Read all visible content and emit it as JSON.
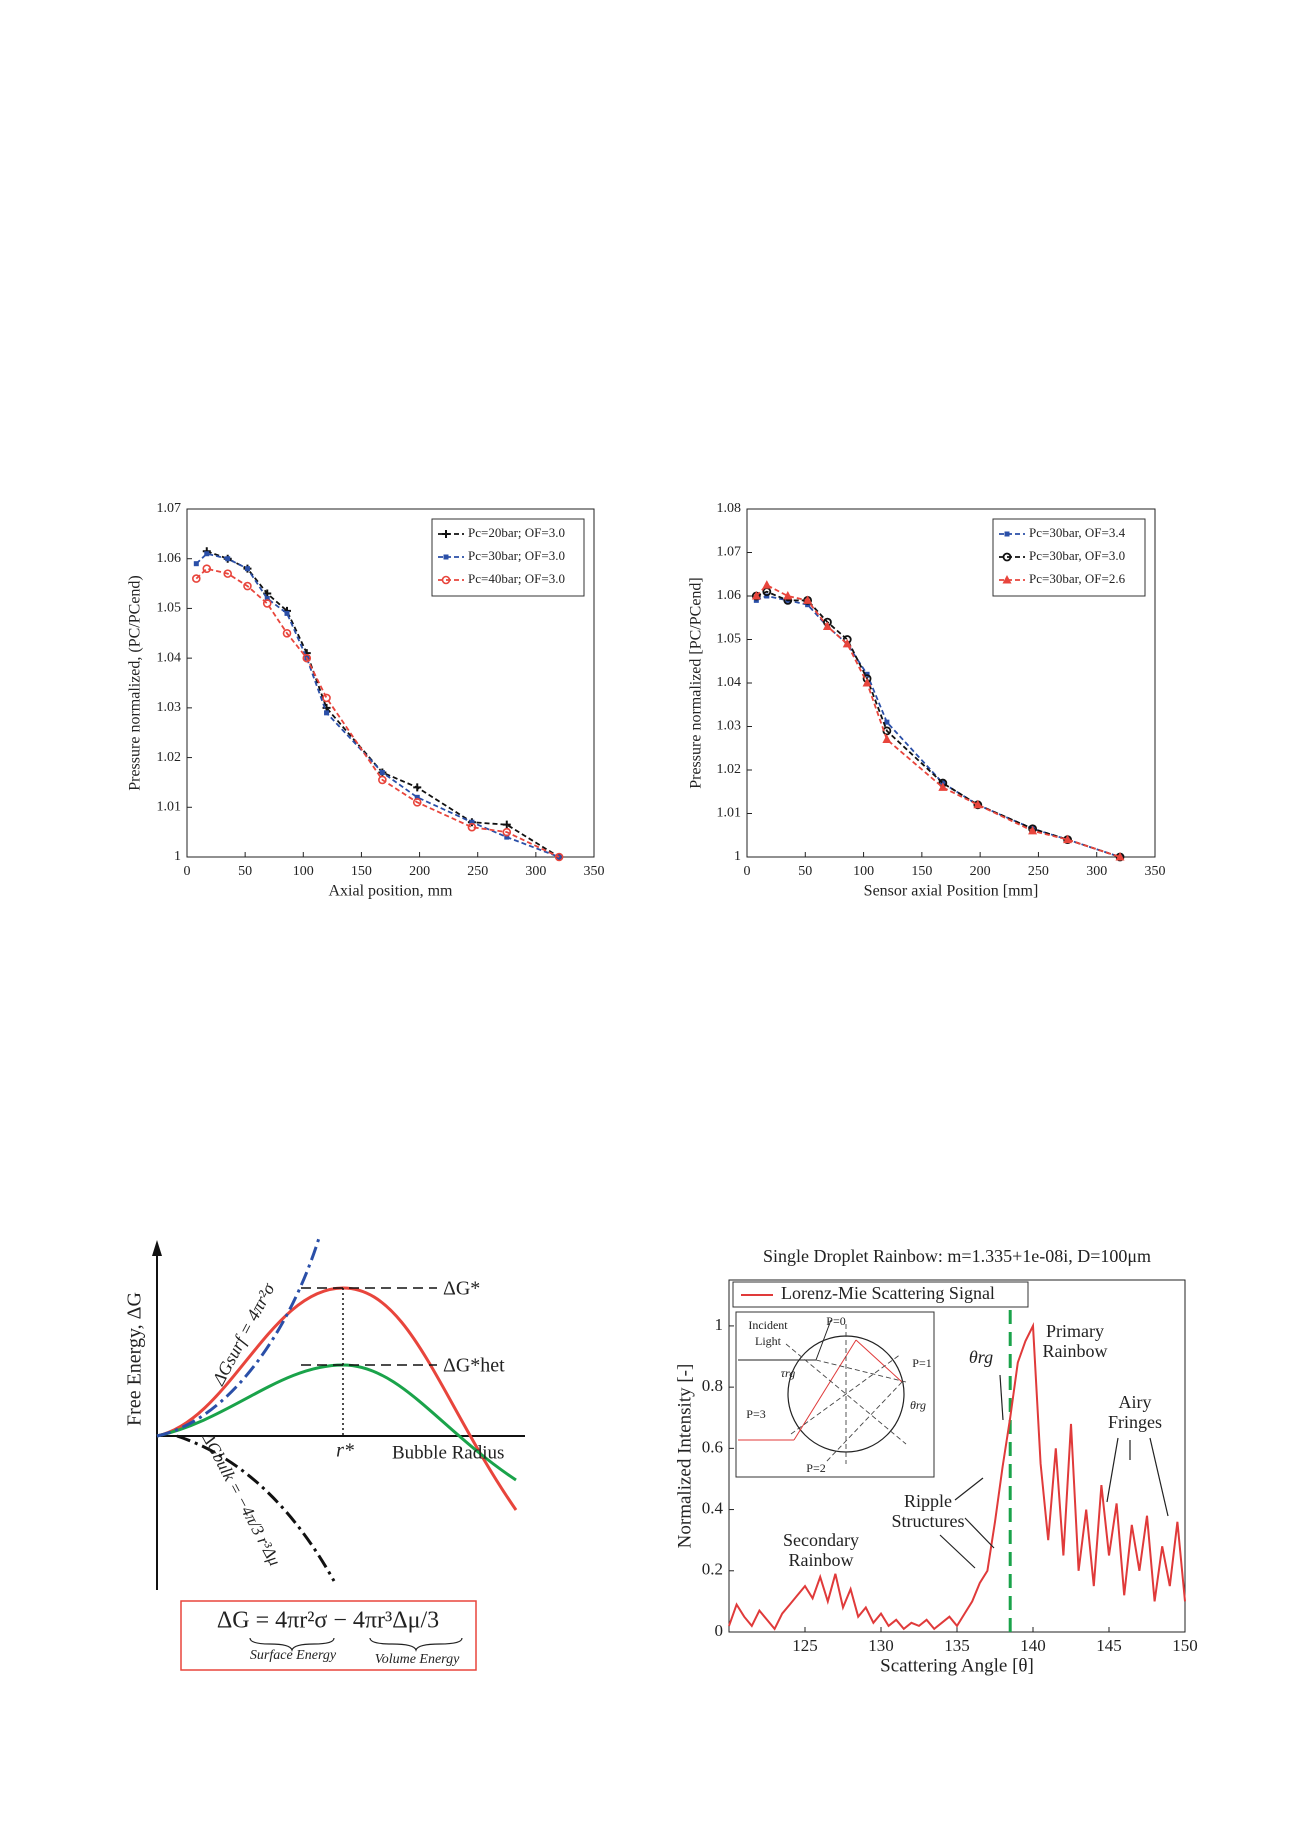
{
  "chart_data": [
    {
      "type": "line",
      "xlabel": "Axial position, mm",
      "ylabel": "Pressure normalized, (PC/PCend)",
      "x": [
        8,
        17,
        35,
        52,
        69,
        86,
        103,
        120,
        168,
        198,
        245,
        275,
        320
      ],
      "xlim": [
        0,
        350
      ],
      "xticks": [
        0,
        50,
        100,
        150,
        200,
        250,
        300,
        350
      ],
      "ylim": [
        1,
        1.07
      ],
      "yticks": [
        1,
        1.01,
        1.02,
        1.03,
        1.04,
        1.05,
        1.06,
        1.07
      ],
      "legend": "upper right",
      "dashed": true,
      "series": [
        {
          "name": "Pc=20bar; OF=3.0",
          "color": "#111111",
          "marker": "plus",
          "values": [
            null,
            1.0615,
            1.06,
            1.058,
            1.053,
            1.0495,
            1.041,
            1.03,
            1.017,
            1.014,
            1.007,
            1.0065,
            1.0
          ]
        },
        {
          "name": "Pc=30bar; OF=3.0",
          "color": "#2a4fa8",
          "marker": "square",
          "values": [
            1.059,
            1.061,
            1.06,
            1.058,
            1.052,
            1.049,
            1.04,
            1.029,
            1.017,
            1.012,
            1.007,
            1.004,
            1.0
          ]
        },
        {
          "name": "Pc=40bar; OF=3.0",
          "color": "#e8453c",
          "marker": "circle",
          "values": [
            1.056,
            1.058,
            1.057,
            1.0545,
            1.051,
            1.045,
            1.04,
            1.032,
            1.0155,
            1.011,
            1.006,
            1.005,
            1.0
          ]
        }
      ]
    },
    {
      "type": "line",
      "xlabel": "Sensor axial Position [mm]",
      "ylabel": "Pressure normalized [PC/PCend]",
      "x": [
        8,
        17,
        35,
        52,
        69,
        86,
        103,
        120,
        168,
        198,
        245,
        275,
        320
      ],
      "xlim": [
        0,
        350
      ],
      "xticks": [
        0,
        50,
        100,
        150,
        200,
        250,
        300,
        350
      ],
      "ylim": [
        1,
        1.08
      ],
      "yticks": [
        1,
        1.01,
        1.02,
        1.03,
        1.04,
        1.05,
        1.06,
        1.07,
        1.08
      ],
      "legend": "upper right",
      "dashed": true,
      "series": [
        {
          "name": "Pc=30bar, OF=3.4",
          "color": "#2a4fa8",
          "marker": "square",
          "values": [
            1.059,
            1.06,
            1.059,
            1.058,
            1.053,
            1.049,
            1.042,
            1.031,
            1.017,
            1.012,
            1.0065,
            1.004,
            1.0
          ]
        },
        {
          "name": "Pc=30bar, OF=3.0",
          "color": "#111111",
          "marker": "circle-open",
          "values": [
            1.06,
            1.061,
            1.059,
            1.059,
            1.054,
            1.05,
            1.041,
            1.029,
            1.017,
            1.012,
            1.0065,
            1.004,
            1.0
          ]
        },
        {
          "name": "Pc=30bar, OF=2.6",
          "color": "#e8453c",
          "marker": "triangle",
          "values": [
            1.06,
            1.0625,
            1.06,
            1.059,
            1.053,
            1.049,
            1.04,
            1.027,
            1.016,
            1.012,
            1.006,
            1.004,
            1.0
          ]
        }
      ]
    },
    {
      "type": "line",
      "title": "Single Droplet Rainbow: m=1.335+1e-08i, D=100μm",
      "xlabel": "Scattering Angle [θ]",
      "ylabel": "Normalized Intensity [-]",
      "x": [
        120,
        120.5,
        121,
        121.5,
        122,
        122.5,
        123,
        123.5,
        124,
        124.5,
        125,
        125.5,
        126,
        126.5,
        127,
        127.5,
        128,
        128.5,
        129,
        129.5,
        130,
        130.5,
        131,
        131.5,
        132,
        132.5,
        133,
        133.5,
        134,
        134.5,
        135,
        135.5,
        136,
        136.5,
        137,
        137.5,
        138,
        138.5,
        139,
        139.5,
        140,
        140.5,
        141,
        141.5,
        142,
        142.5,
        143,
        143.5,
        144,
        144.5,
        145,
        145.5,
        146,
        146.5,
        147,
        147.5,
        148,
        148.5,
        149,
        149.5,
        150
      ],
      "xlim": [
        120,
        150
      ],
      "xticks": [
        125,
        130,
        135,
        140,
        145,
        150
      ],
      "ylim": [
        0,
        1.15
      ],
      "yticks": [
        0,
        0.2,
        0.4,
        0.6,
        0.8,
        1
      ],
      "legend": "upper left",
      "dashed": false,
      "series": [
        {
          "name": "Lorenz-Mie Scattering Signal",
          "color": "#e03a3a",
          "marker": "none",
          "values": [
            0.02,
            0.09,
            0.05,
            0.02,
            0.07,
            0.04,
            0.01,
            0.06,
            0.09,
            0.12,
            0.15,
            0.11,
            0.18,
            0.1,
            0.19,
            0.08,
            0.14,
            0.05,
            0.08,
            0.03,
            0.06,
            0.02,
            0.04,
            0.01,
            0.03,
            0.02,
            0.04,
            0.01,
            0.03,
            0.05,
            0.02,
            0.06,
            0.1,
            0.16,
            0.2,
            0.36,
            0.54,
            0.7,
            0.88,
            0.95,
            1.0,
            0.55,
            0.3,
            0.6,
            0.25,
            0.68,
            0.2,
            0.4,
            0.15,
            0.48,
            0.25,
            0.42,
            0.12,
            0.35,
            0.2,
            0.38,
            0.1,
            0.28,
            0.15,
            0.36,
            0.1
          ]
        }
      ],
      "vline": {
        "value": 138.5,
        "color": "#1aa34a"
      },
      "annotations": [
        [
          "θrg"
        ],
        [
          "Primary",
          "Rainbow"
        ],
        [
          "Airy",
          "Fringes"
        ],
        [
          "Ripple",
          "Structures"
        ],
        [
          "Secondary",
          "Rainbow"
        ]
      ],
      "inset": [
        "Incident",
        "Light",
        "P=0",
        "P=1",
        "P=2",
        "P=3",
        "τrg",
        "θrg"
      ]
    }
  ],
  "diagram": {
    "ylabel": "Free Energy, ΔG",
    "xlabel": "Bubble Radius",
    "r_star": "r*",
    "dg_star": "ΔG*",
    "dg_het": "ΔG*het",
    "dg_surf": "ΔGsurf = 4πr²σ",
    "dg_bulk": "ΔGbulk = −4π/3 r³Δμ",
    "formula": "ΔG =  4πr²σ  − 4πr³Δμ/3",
    "surface": "Surface Energy",
    "volume": "Volume Energy"
  }
}
